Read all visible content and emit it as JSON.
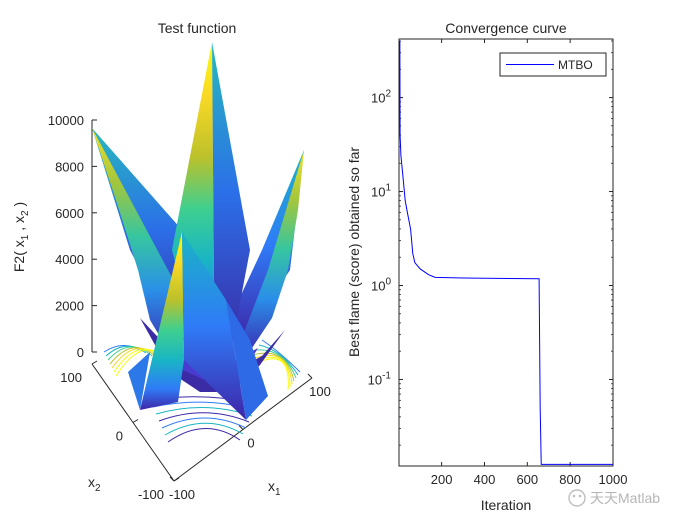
{
  "chart_data": [
    {
      "type": "surface",
      "title": "Test function",
      "zlabel_main": "F2( x",
      "zlabel_sub1": "1",
      "zlabel_mid": " , x",
      "zlabel_sub2": "2",
      "zlabel_end": " )",
      "xlabel_main": "x",
      "xlabel_sub": "1",
      "ylabel_main": "x",
      "ylabel_sub": "2",
      "zticks": [
        "0",
        "2000",
        "4000",
        "6000",
        "8000",
        "10000"
      ],
      "x1_ticks": [
        "-100",
        "0",
        "100"
      ],
      "x2_ticks": [
        "-100",
        "0",
        "100"
      ],
      "x1_range": [
        -100,
        100
      ],
      "x2_range": [
        -100,
        100
      ],
      "zlim": [
        0,
        10000
      ],
      "colormap": [
        "#3e26a8",
        "#2f7bf7",
        "#19b5c4",
        "#3fcf8f",
        "#bcc12b",
        "#f9d825",
        "#f9fb0e"
      ]
    },
    {
      "type": "line",
      "title": "Convergence curve",
      "xlabel": "Iteration",
      "ylabel": "Best flame (score) obtained so far",
      "xlim": [
        1,
        1000
      ],
      "ylim": [
        0.012,
        420
      ],
      "y_scale": "log",
      "xticks": [
        "200",
        "400",
        "600",
        "800",
        "1000"
      ],
      "yticks": [
        {
          "base": "10",
          "exp": "-1",
          "value": 0.1
        },
        {
          "base": "10",
          "exp": "0",
          "value": 1
        },
        {
          "base": "10",
          "exp": "1",
          "value": 10
        },
        {
          "base": "10",
          "exp": "2",
          "value": 100
        }
      ],
      "legend_position": "top-right",
      "series": [
        {
          "name": "MTBO",
          "color": "#0000ff",
          "points": [
            [
              1,
              400
            ],
            [
              5,
              400
            ],
            [
              6,
              40
            ],
            [
              10,
              24
            ],
            [
              20,
              14
            ],
            [
              30,
              8
            ],
            [
              40,
              6
            ],
            [
              55,
              4
            ],
            [
              60,
              3
            ],
            [
              65,
              2.2
            ],
            [
              75,
              1.75
            ],
            [
              100,
              1.5
            ],
            [
              140,
              1.3
            ],
            [
              170,
              1.22
            ],
            [
              300,
              1.2
            ],
            [
              655,
              1.18
            ],
            [
              660,
              0.05
            ],
            [
              665,
              0.0125
            ],
            [
              1000,
              0.0125
            ]
          ]
        }
      ],
      "watermark": "天天Matlab"
    }
  ]
}
